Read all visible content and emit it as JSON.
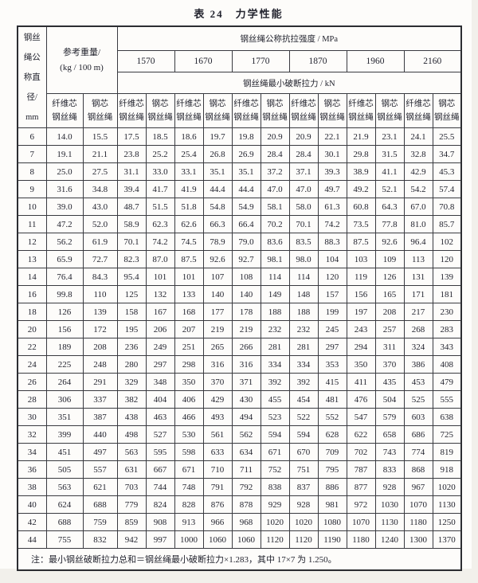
{
  "page": {
    "title": "表 24　力学性能"
  },
  "table": {
    "diameter_header_lines": [
      "钢丝",
      "绳公",
      "称直",
      "径/",
      "mm"
    ],
    "weight_header_line1": "参考重量/",
    "weight_header_line2": "(kg / 100 m)",
    "strength_header": "钢丝绳公称抗拉强度 / MPa",
    "grades": [
      "1570",
      "1670",
      "1770",
      "1870",
      "1960",
      "2160"
    ],
    "breaking_header": "钢丝绳最小破断拉力 / kN",
    "fiber_core_lines": [
      "纤维芯",
      "钢丝绳"
    ],
    "steel_core_lines": [
      "钢芯",
      "钢丝绳"
    ],
    "rows": [
      {
        "diameter": "6",
        "values": [
          "14.0",
          "15.5",
          "17.5",
          "18.5",
          "18.6",
          "19.7",
          "19.8",
          "20.9",
          "20.9",
          "22.1",
          "21.9",
          "23.1",
          "24.1",
          "25.5"
        ]
      },
      {
        "diameter": "7",
        "values": [
          "19.1",
          "21.1",
          "23.8",
          "25.2",
          "25.4",
          "26.8",
          "26.9",
          "28.4",
          "28.4",
          "30.1",
          "29.8",
          "31.5",
          "32.8",
          "34.7"
        ]
      },
      {
        "diameter": "8",
        "values": [
          "25.0",
          "27.5",
          "31.1",
          "33.0",
          "33.1",
          "35.1",
          "35.1",
          "37.2",
          "37.1",
          "39.3",
          "38.9",
          "41.1",
          "42.9",
          "45.3"
        ]
      },
      {
        "diameter": "9",
        "values": [
          "31.6",
          "34.8",
          "39.4",
          "41.7",
          "41.9",
          "44.4",
          "44.4",
          "47.0",
          "47.0",
          "49.7",
          "49.2",
          "52.1",
          "54.2",
          "57.4"
        ]
      },
      {
        "diameter": "10",
        "values": [
          "39.0",
          "43.0",
          "48.7",
          "51.5",
          "51.8",
          "54.8",
          "54.9",
          "58.1",
          "58.0",
          "61.3",
          "60.8",
          "64.3",
          "67.0",
          "70.8"
        ]
      },
      {
        "diameter": "11",
        "values": [
          "47.2",
          "52.0",
          "58.9",
          "62.3",
          "62.6",
          "66.3",
          "66.4",
          "70.2",
          "70.1",
          "74.2",
          "73.5",
          "77.8",
          "81.0",
          "85.7"
        ]
      },
      {
        "diameter": "12",
        "values": [
          "56.2",
          "61.9",
          "70.1",
          "74.2",
          "74.5",
          "78.9",
          "79.0",
          "83.6",
          "83.5",
          "88.3",
          "87.5",
          "92.6",
          "96.4",
          "102"
        ]
      },
      {
        "diameter": "13",
        "values": [
          "65.9",
          "72.7",
          "82.3",
          "87.0",
          "87.5",
          "92.6",
          "92.7",
          "98.1",
          "98.0",
          "104",
          "103",
          "109",
          "113",
          "120"
        ]
      },
      {
        "diameter": "14",
        "values": [
          "76.4",
          "84.3",
          "95.4",
          "101",
          "101",
          "107",
          "108",
          "114",
          "114",
          "120",
          "119",
          "126",
          "131",
          "139"
        ]
      },
      {
        "diameter": "16",
        "values": [
          "99.8",
          "110",
          "125",
          "132",
          "133",
          "140",
          "140",
          "149",
          "148",
          "157",
          "156",
          "165",
          "171",
          "181"
        ]
      },
      {
        "diameter": "18",
        "values": [
          "126",
          "139",
          "158",
          "167",
          "168",
          "177",
          "178",
          "188",
          "188",
          "199",
          "197",
          "208",
          "217",
          "230"
        ]
      },
      {
        "diameter": "20",
        "values": [
          "156",
          "172",
          "195",
          "206",
          "207",
          "219",
          "219",
          "232",
          "232",
          "245",
          "243",
          "257",
          "268",
          "283"
        ]
      },
      {
        "diameter": "22",
        "values": [
          "189",
          "208",
          "236",
          "249",
          "251",
          "265",
          "266",
          "281",
          "281",
          "297",
          "294",
          "311",
          "324",
          "343"
        ]
      },
      {
        "diameter": "24",
        "values": [
          "225",
          "248",
          "280",
          "297",
          "298",
          "316",
          "316",
          "334",
          "334",
          "353",
          "350",
          "370",
          "386",
          "408"
        ]
      },
      {
        "diameter": "26",
        "values": [
          "264",
          "291",
          "329",
          "348",
          "350",
          "370",
          "371",
          "392",
          "392",
          "415",
          "411",
          "435",
          "453",
          "479"
        ]
      },
      {
        "diameter": "28",
        "values": [
          "306",
          "337",
          "382",
          "404",
          "406",
          "429",
          "430",
          "455",
          "454",
          "481",
          "476",
          "504",
          "525",
          "555"
        ]
      },
      {
        "diameter": "30",
        "values": [
          "351",
          "387",
          "438",
          "463",
          "466",
          "493",
          "494",
          "523",
          "522",
          "552",
          "547",
          "579",
          "603",
          "638"
        ]
      },
      {
        "diameter": "32",
        "values": [
          "399",
          "440",
          "498",
          "527",
          "530",
          "561",
          "562",
          "594",
          "594",
          "628",
          "622",
          "658",
          "686",
          "725"
        ]
      },
      {
        "diameter": "34",
        "values": [
          "451",
          "497",
          "563",
          "595",
          "598",
          "633",
          "634",
          "671",
          "670",
          "709",
          "702",
          "743",
          "774",
          "819"
        ]
      },
      {
        "diameter": "36",
        "values": [
          "505",
          "557",
          "631",
          "667",
          "671",
          "710",
          "711",
          "752",
          "751",
          "795",
          "787",
          "833",
          "868",
          "918"
        ]
      },
      {
        "diameter": "38",
        "values": [
          "563",
          "621",
          "703",
          "744",
          "748",
          "791",
          "792",
          "838",
          "837",
          "886",
          "877",
          "928",
          "967",
          "1020"
        ]
      },
      {
        "diameter": "40",
        "values": [
          "624",
          "688",
          "779",
          "824",
          "828",
          "876",
          "878",
          "929",
          "928",
          "981",
          "972",
          "1030",
          "1070",
          "1130"
        ]
      },
      {
        "diameter": "42",
        "values": [
          "688",
          "759",
          "859",
          "908",
          "913",
          "966",
          "968",
          "1020",
          "1020",
          "1080",
          "1070",
          "1130",
          "1180",
          "1250"
        ]
      },
      {
        "diameter": "44",
        "values": [
          "755",
          "832",
          "942",
          "997",
          "1000",
          "1060",
          "1060",
          "1120",
          "1120",
          "1190",
          "1180",
          "1240",
          "1300",
          "1370"
        ]
      }
    ],
    "note": "注：最小钢丝破断拉力总和＝钢丝绳最小破断拉力×1.283，其中 17×7 为 1.250。"
  }
}
